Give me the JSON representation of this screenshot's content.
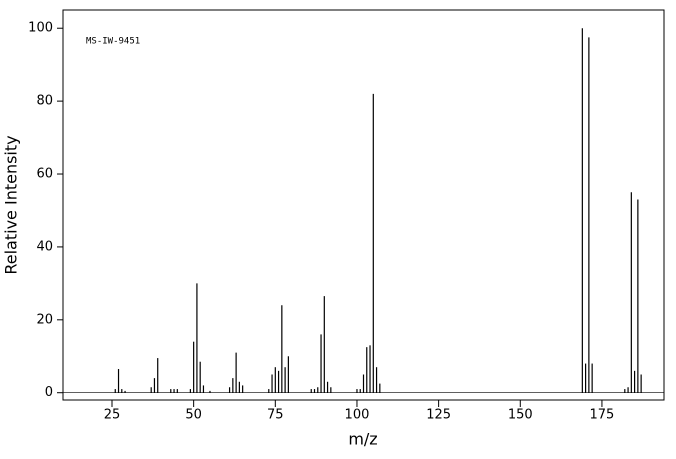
{
  "chart_data": {
    "type": "stem",
    "annotation": "MS-IW-9451",
    "xlabel": "m/z",
    "ylabel": "Relative Intensity",
    "x": [
      26,
      27,
      28,
      29,
      37,
      38,
      39,
      43,
      44,
      45,
      49,
      50,
      51,
      52,
      53,
      55,
      61,
      62,
      63,
      64,
      65,
      73,
      74,
      75,
      76,
      77,
      78,
      79,
      86,
      87,
      88,
      89,
      90,
      91,
      92,
      100,
      101,
      102,
      103,
      104,
      105,
      106,
      107,
      169,
      170,
      171,
      172,
      182,
      183,
      184,
      185,
      186,
      187
    ],
    "values": [
      1,
      6.5,
      1,
      0.5,
      1.5,
      4,
      9.5,
      1,
      1,
      1,
      1,
      14,
      30,
      8.5,
      2,
      0.5,
      1.5,
      4,
      11,
      3,
      2,
      1,
      5,
      7,
      6,
      24,
      7,
      10,
      1,
      1,
      1.5,
      16,
      26.5,
      3,
      1.5,
      1,
      1,
      5,
      12.5,
      13,
      82,
      7,
      2.5,
      100,
      8,
      97.5,
      8,
      1,
      1.5,
      55,
      6,
      53,
      5
    ],
    "color": "#000000",
    "xlim": [
      10,
      194
    ],
    "ylim": [
      -2,
      105
    ],
    "xticks": [
      25,
      50,
      75,
      100,
      125,
      150,
      175
    ],
    "yticks": [
      0,
      20,
      40,
      60,
      80,
      100
    ]
  }
}
